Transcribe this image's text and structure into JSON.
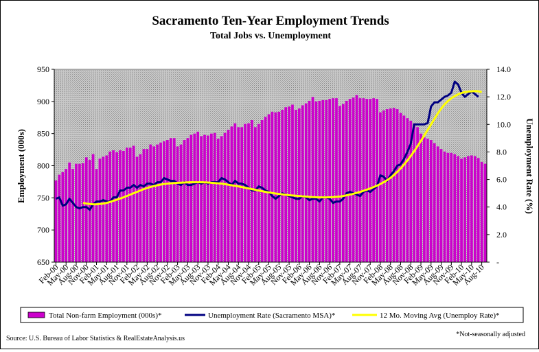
{
  "chart_data": {
    "type": "bar",
    "title": "Sacramento Ten-Year Employment Trends",
    "subtitle": "Total Jobs vs. Unemployment",
    "ylabel": "Employment (000s)",
    "y2label": "Unemployment Rate (%)",
    "ylim": [
      650,
      950
    ],
    "y2lim": [
      0,
      14
    ],
    "yticks": [
      "650",
      "700",
      "750",
      "800",
      "850",
      "900",
      "950"
    ],
    "y2ticks": [
      "-",
      "2.0",
      "4.0",
      "6.0",
      "8.0",
      "10.0",
      "12.0",
      "14.0"
    ],
    "x_tick_labels": [
      "Feb-00",
      "May-00",
      "Aug-00",
      "Nov-00",
      "Feb-01",
      "May-01",
      "Aug-01",
      "Nov-01",
      "Feb-02",
      "May-02",
      "Aug-02",
      "Nov-02",
      "Feb-03",
      "May-03",
      "Aug-03",
      "Nov-03",
      "Feb-04",
      "May-04",
      "Aug-04",
      "Nov-04",
      "Feb-05",
      "May-05",
      "Aug-05",
      "Nov-05",
      "Feb-06",
      "May-06",
      "Aug-06",
      "Nov-06",
      "Feb-07",
      "May-07",
      "Aug-07",
      "Nov-07",
      "Feb-08",
      "May-08",
      "Aug-08",
      "Nov-08",
      "Feb-09",
      "May-09",
      "Aug-09",
      "Nov-09",
      "Feb-10",
      "May-10",
      "Aug-10"
    ],
    "grid": false,
    "legend_position": "bottom",
    "series": [
      {
        "name": "Total Non-farm Employment (000s)*",
        "type": "bar",
        "axis": "left",
        "color": "#CC00CC",
        "values": [
          777,
          786,
          790,
          795,
          805,
          795,
          803,
          803,
          804,
          813,
          809,
          818,
          795,
          811,
          814,
          816,
          822,
          824,
          821,
          824,
          823,
          828,
          828,
          831,
          814,
          818,
          826,
          826,
          833,
          830,
          833,
          836,
          838,
          840,
          843,
          843,
          830,
          833,
          840,
          843,
          848,
          850,
          853,
          846,
          848,
          847,
          850,
          851,
          842,
          846,
          851,
          856,
          861,
          866,
          860,
          860,
          865,
          866,
          871,
          860,
          865,
          871,
          876,
          880,
          884,
          883,
          884,
          887,
          891,
          892,
          895,
          887,
          889,
          894,
          897,
          901,
          907,
          900,
          901,
          902,
          902,
          904,
          905,
          905,
          893,
          896,
          901,
          904,
          906,
          910,
          905,
          905,
          904,
          904,
          905,
          904,
          883,
          886,
          888,
          889,
          890,
          888,
          882,
          878,
          874,
          870,
          866,
          860,
          850,
          844,
          842,
          840,
          835,
          830,
          826,
          822,
          820,
          820,
          818,
          815,
          811,
          813,
          815,
          816,
          815,
          812,
          806,
          803
        ]
      },
      {
        "name": "Unemployment Rate (Sacramento MSA)*",
        "type": "line",
        "axis": "right",
        "color": "#000080",
        "values": [
          4.6,
          4.7,
          4.1,
          4.2,
          4.6,
          4.3,
          4.0,
          3.9,
          4.0,
          4.0,
          3.8,
          4.2,
          4.4,
          4.4,
          4.5,
          4.4,
          4.4,
          4.7,
          4.7,
          5.2,
          5.2,
          5.4,
          5.4,
          5.6,
          5.4,
          5.6,
          5.5,
          5.7,
          5.7,
          5.6,
          5.8,
          5.8,
          6.1,
          6.0,
          5.9,
          5.9,
          5.7,
          5.6,
          5.8,
          5.6,
          5.6,
          5.7,
          5.8,
          5.7,
          5.8,
          5.7,
          5.8,
          5.8,
          5.8,
          6.1,
          6.0,
          5.8,
          5.6,
          5.9,
          5.7,
          5.7,
          5.6,
          5.4,
          5.2,
          5.2,
          5.5,
          5.4,
          5.2,
          5.1,
          4.8,
          4.6,
          4.8,
          5.0,
          4.9,
          4.8,
          4.7,
          4.6,
          4.6,
          4.8,
          4.7,
          4.5,
          4.6,
          4.6,
          4.4,
          4.7,
          4.7,
          4.6,
          4.3,
          4.4,
          4.4,
          4.6,
          5.0,
          5.1,
          5.0,
          4.9,
          4.8,
          5.1,
          5.2,
          5.1,
          5.3,
          5.5,
          6.3,
          6.2,
          5.9,
          6.3,
          6.6,
          7.0,
          7.1,
          7.5,
          8.0,
          8.6,
          10.0,
          10.0,
          10.0,
          10.0,
          10.1,
          11.3,
          11.6,
          11.6,
          11.8,
          12.0,
          12.1,
          12.3,
          13.1,
          12.9,
          12.3,
          12.0,
          12.2,
          12.4,
          12.2,
          12.0
        ]
      },
      {
        "name": "12 Mo. Moving Avg (Unemploy Rate)*",
        "type": "line",
        "axis": "right",
        "color": "#FFFF00",
        "start_index": 8,
        "values": [
          4.3,
          4.25,
          4.22,
          4.2,
          4.2,
          4.22,
          4.25,
          4.3,
          4.37,
          4.45,
          4.53,
          4.62,
          4.7,
          4.8,
          4.9,
          5.0,
          5.1,
          5.2,
          5.3,
          5.38,
          5.46,
          5.52,
          5.58,
          5.63,
          5.67,
          5.7,
          5.72,
          5.74,
          5.76,
          5.77,
          5.78,
          5.79,
          5.8,
          5.8,
          5.8,
          5.8,
          5.79,
          5.78,
          5.76,
          5.74,
          5.72,
          5.7,
          5.66,
          5.62,
          5.58,
          5.54,
          5.5,
          5.45,
          5.4,
          5.35,
          5.3,
          5.25,
          5.2,
          5.15,
          5.1,
          5.06,
          5.02,
          4.98,
          4.95,
          4.92,
          4.89,
          4.86,
          4.84,
          4.82,
          4.8,
          4.78,
          4.76,
          4.74,
          4.72,
          4.71,
          4.7,
          4.7,
          4.7,
          4.71,
          4.72,
          4.74,
          4.76,
          4.8,
          4.85,
          4.9,
          4.96,
          5.03,
          5.1,
          5.18,
          5.26,
          5.35,
          5.45,
          5.55,
          5.67,
          5.8,
          5.95,
          6.12,
          6.32,
          6.55,
          6.8,
          7.08,
          7.38,
          7.7,
          8.05,
          8.42,
          8.8,
          9.2,
          9.6,
          10.0,
          10.4,
          10.8,
          11.15,
          11.45,
          11.7,
          11.9,
          12.05,
          12.18,
          12.28,
          12.35,
          12.38,
          12.4,
          12.42,
          12.4,
          12.35
        ]
      }
    ]
  },
  "footer": {
    "source": "Source: U.S. Bureau of Labor Statistics & RealEstateAnalysis.us",
    "note": "*Not-seasonally adjusted"
  },
  "colors": {
    "plot_background": "#C0C0C0",
    "plot_hatch": "#808080"
  }
}
